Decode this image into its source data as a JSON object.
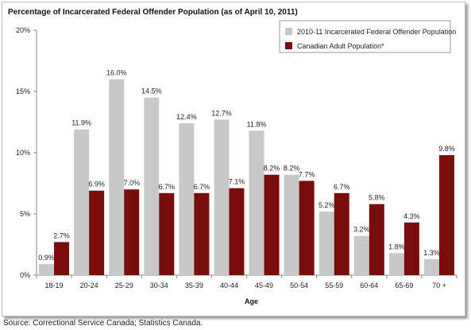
{
  "chart_data": {
    "type": "bar",
    "title": "Percentage of Incarcerated Federal Offender Population (as of April 10, 2011)",
    "xlabel": "Age",
    "ylabel": "",
    "categories": [
      "18-19",
      "20-24",
      "25-29",
      "30-34",
      "35-39",
      "40-44",
      "45-49",
      "50-54",
      "55-59",
      "60-64",
      "65-69",
      "70 +"
    ],
    "series": [
      {
        "name": "2010-11 Incarcerated Federal Offender Population",
        "color": "#c8c8c8",
        "values": [
          0.9,
          11.9,
          16.0,
          14.5,
          12.4,
          12.7,
          11.8,
          8.2,
          5.2,
          3.2,
          1.8,
          1.3
        ],
        "labels": [
          "0.9%",
          "11.9%",
          "16.0%",
          "14.5%",
          "12.4%",
          "12.7%",
          "11.8%",
          "8.2%",
          "5.2%",
          "3.2%",
          "1.8%",
          "1.3%"
        ]
      },
      {
        "name": "Canadian Adult Population*",
        "color": "#7b0c0c",
        "values": [
          2.7,
          6.9,
          7.0,
          6.7,
          6.7,
          7.1,
          8.2,
          7.7,
          6.7,
          5.8,
          4.3,
          9.8
        ],
        "labels": [
          "2.7%",
          "6.9%",
          "7.0%",
          "6.7%",
          "6.7%",
          "7.1%",
          "8.2%",
          "7.7%",
          "6.7%",
          "5.8%",
          "4.3%",
          "9.8%"
        ]
      }
    ],
    "yticks": [
      0,
      5,
      10,
      15,
      20
    ],
    "ytick_labels": [
      "0%",
      "5%",
      "10%",
      "15%",
      "20%"
    ],
    "ylim": [
      0,
      20
    ],
    "grid": false,
    "legend_position": "top-right"
  },
  "source": "Source:  Correctional Service Canada; Statistics Canada."
}
